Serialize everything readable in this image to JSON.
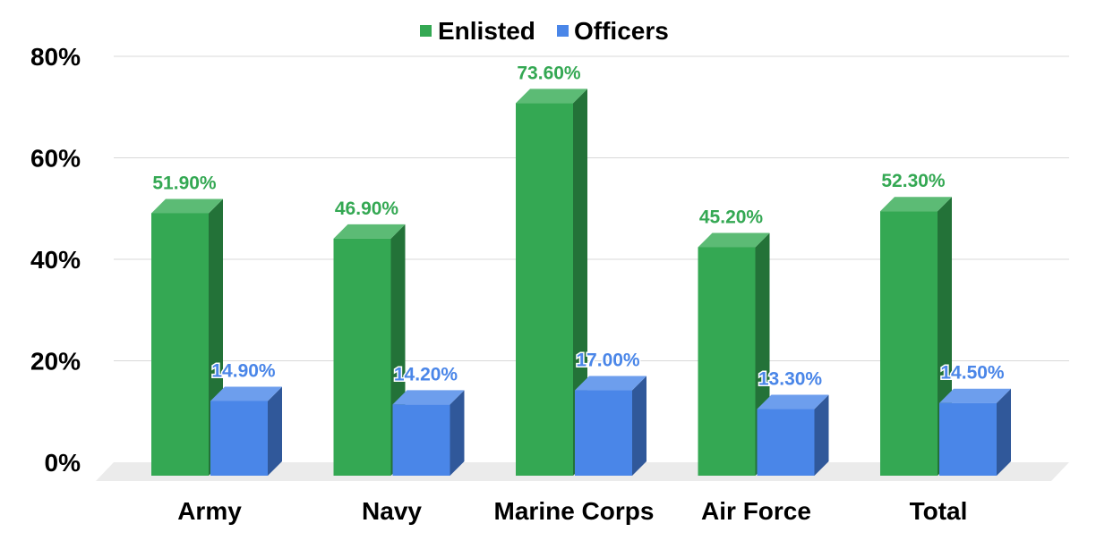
{
  "chart_data": {
    "type": "bar",
    "categories": [
      "Army",
      "Navy",
      "Marine Corps",
      "Air Force",
      "Total"
    ],
    "series": [
      {
        "name": "Enlisted",
        "values": [
          51.9,
          46.9,
          73.6,
          45.2,
          52.3
        ],
        "labels": [
          "51.90%",
          "46.90%",
          "73.60%",
          "45.20%",
          "52.30%"
        ]
      },
      {
        "name": "Officers",
        "values": [
          14.9,
          14.2,
          17.0,
          13.3,
          14.5
        ],
        "labels": [
          "14.90%",
          "14.20%",
          "17.00%",
          "13.30%",
          "14.50%"
        ]
      }
    ],
    "yticks": [
      "0%",
      "20%",
      "40%",
      "60%",
      "80%"
    ],
    "ylim": [
      0,
      80
    ],
    "grid": true,
    "legend_position": "top-center",
    "three_d": true
  },
  "colors": {
    "enlisted_front": "#34a853",
    "enlisted_top": "#5cbb75",
    "enlisted_side": "#237238",
    "officers_front": "#4a86e8",
    "officers_top": "#6d9eed",
    "officers_side": "#30589a",
    "floor": "#ebebeb"
  }
}
